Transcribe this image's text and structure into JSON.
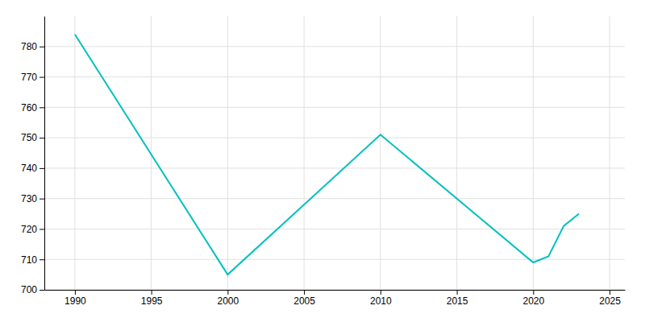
{
  "chart_data": {
    "type": "line",
    "x": [
      1990,
      2000,
      2010,
      2020,
      2021,
      2022,
      2023
    ],
    "values": [
      784,
      705,
      751,
      709,
      711,
      721,
      725
    ],
    "color": "#00C0C0",
    "xlim": [
      1988,
      2026
    ],
    "ylim": [
      700,
      790
    ],
    "xticks": [
      1990,
      1995,
      2000,
      2005,
      2010,
      2015,
      2020,
      2025
    ],
    "yticks": [
      700,
      710,
      720,
      730,
      740,
      750,
      760,
      770,
      780
    ],
    "grid": true
  }
}
